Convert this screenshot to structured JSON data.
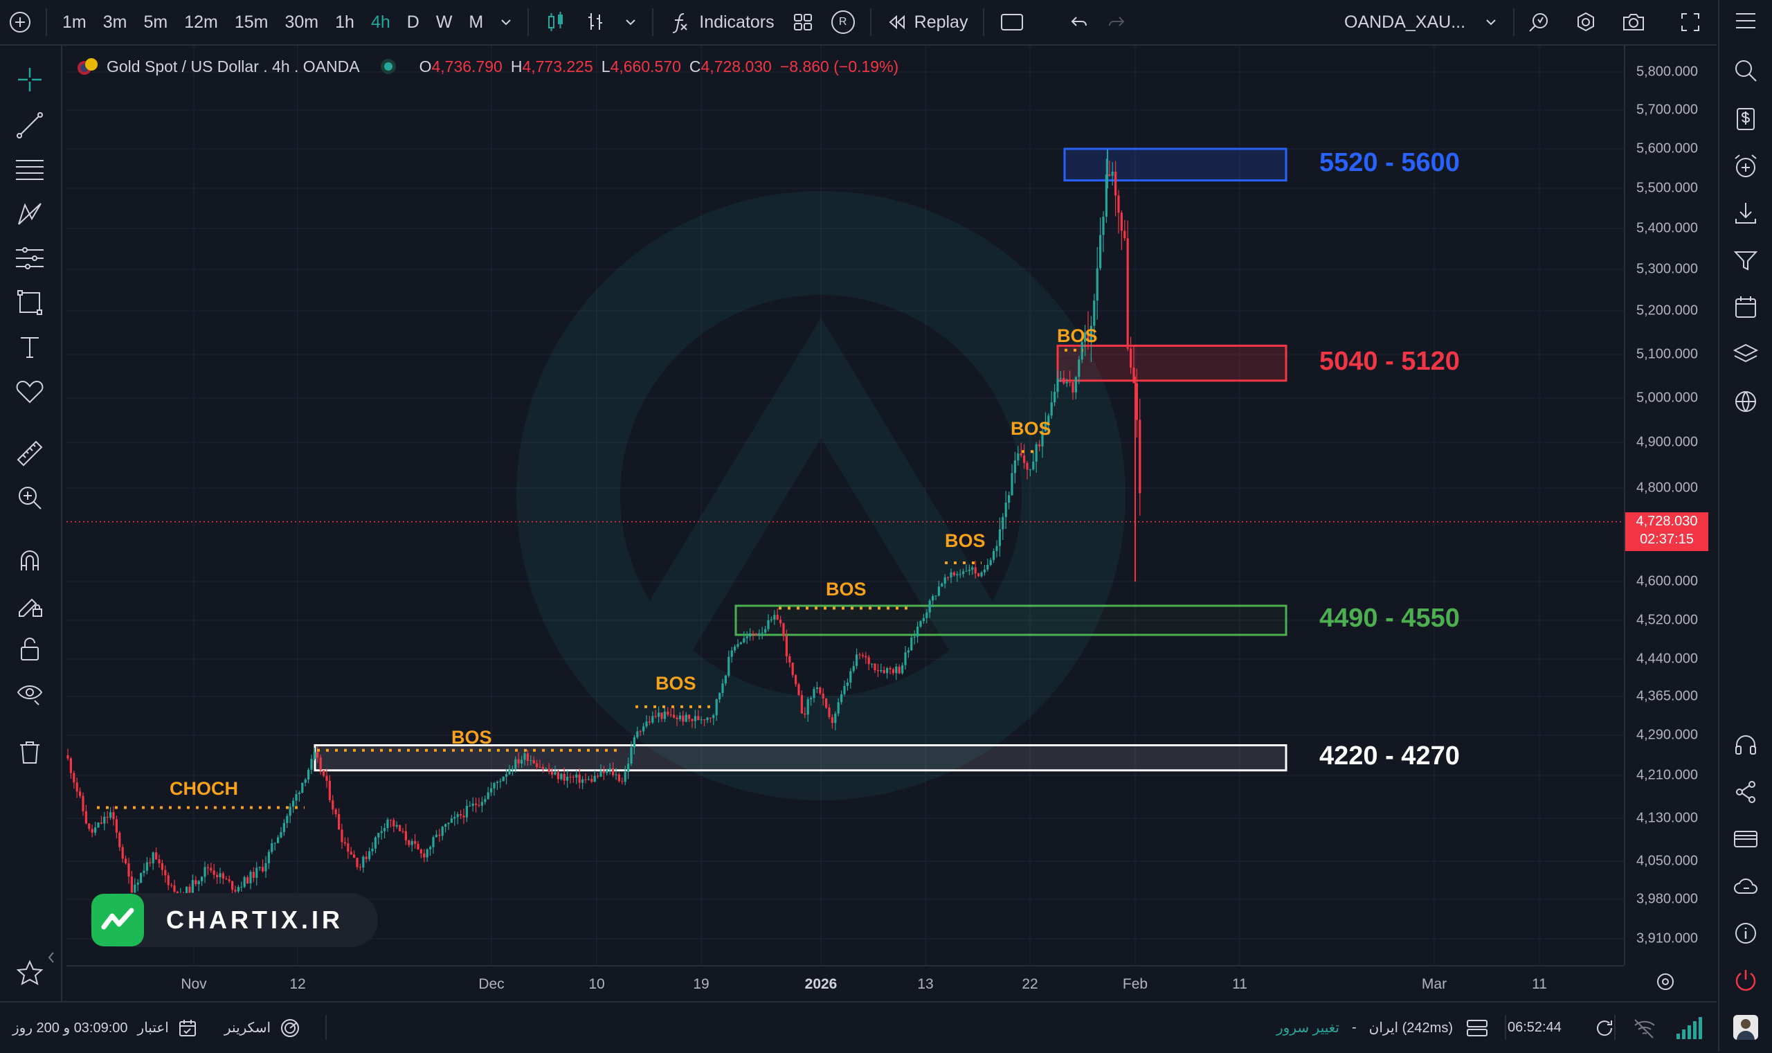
{
  "toolbar": {
    "intervals": [
      "1m",
      "3m",
      "5m",
      "12m",
      "15m",
      "30m",
      "1h",
      "4h",
      "D",
      "W",
      "M"
    ],
    "active_interval": "4h",
    "indicators_label": "Indicators",
    "replay_label": "Replay",
    "r_badge": "R",
    "symbol_select": "OANDA_XAU..."
  },
  "legend": {
    "title": "Gold Spot / US Dollar . 4h . OANDA",
    "o_key": "O",
    "o_val": "4,736.790",
    "h_key": "H",
    "h_val": "4,773.225",
    "l_key": "L",
    "l_val": "4,660.570",
    "c_key": "C",
    "c_val": "4,728.030",
    "change": "−8.860 (−0.19%)"
  },
  "price_axis": {
    "ticks": [
      {
        "label": "5,800.000",
        "v": 5800
      },
      {
        "label": "5,700.000",
        "v": 5700
      },
      {
        "label": "5,600.000",
        "v": 5600
      },
      {
        "label": "5,500.000",
        "v": 5500
      },
      {
        "label": "5,400.000",
        "v": 5400
      },
      {
        "label": "5,300.000",
        "v": 5300
      },
      {
        "label": "5,200.000",
        "v": 5200
      },
      {
        "label": "5,100.000",
        "v": 5100
      },
      {
        "label": "5,000.000",
        "v": 5000
      },
      {
        "label": "4,900.000",
        "v": 4900
      },
      {
        "label": "4,800.000",
        "v": 4800
      },
      {
        "label": "4,600.000",
        "v": 4600
      },
      {
        "label": "4,520.000",
        "v": 4520
      },
      {
        "label": "4,440.000",
        "v": 4440
      },
      {
        "label": "4,365.000",
        "v": 4365
      },
      {
        "label": "4,290.000",
        "v": 4290
      },
      {
        "label": "4,210.000",
        "v": 4210
      },
      {
        "label": "4,130.000",
        "v": 4130
      },
      {
        "label": "4,050.000",
        "v": 4050
      },
      {
        "label": "3,980.000",
        "v": 3980
      },
      {
        "label": "3,910.000",
        "v": 3910
      }
    ],
    "current_price": "4,728.030",
    "countdown": "02:37:15"
  },
  "time_axis": {
    "ticks": [
      {
        "label": "Nov",
        "bold": false
      },
      {
        "label": "12",
        "bold": false
      },
      {
        "label": "Dec",
        "bold": false
      },
      {
        "label": "10",
        "bold": false
      },
      {
        "label": "19",
        "bold": false
      },
      {
        "label": "2026",
        "bold": true
      },
      {
        "label": "13",
        "bold": false
      },
      {
        "label": "22",
        "bold": false
      },
      {
        "label": "Feb",
        "bold": false
      },
      {
        "label": "11",
        "bold": false
      },
      {
        "label": "Mar",
        "bold": false
      },
      {
        "label": "11",
        "bold": false
      }
    ]
  },
  "zones": [
    {
      "label": "5520 - 5600",
      "low": 5520,
      "high": 5600,
      "color": "#2962ff"
    },
    {
      "label": "5040 - 5120",
      "low": 5040,
      "high": 5120,
      "color": "#f23645"
    },
    {
      "label": "4490 - 4550",
      "low": 4490,
      "high": 4550,
      "color": "#4caf50"
    },
    {
      "label": "4220 - 4270",
      "low": 4220,
      "high": 4270,
      "color": "#ffffff"
    }
  ],
  "annotations": {
    "choch": "CHOCH",
    "bos": "BOS"
  },
  "watermark": {
    "text": "CHARTIX.IR"
  },
  "statusbar": {
    "credit": "03:09:00 و 200 روز",
    "credit_label": "اعتبار",
    "screener": "اسکرینر",
    "server_change": "تغییر سرور",
    "dash": "-",
    "server": "ایران (242ms)",
    "time": "06:52:44"
  },
  "colors": {
    "up": "#26a69a",
    "down": "#f23645",
    "annotation": "#f7a21b",
    "background": "#131722"
  }
}
